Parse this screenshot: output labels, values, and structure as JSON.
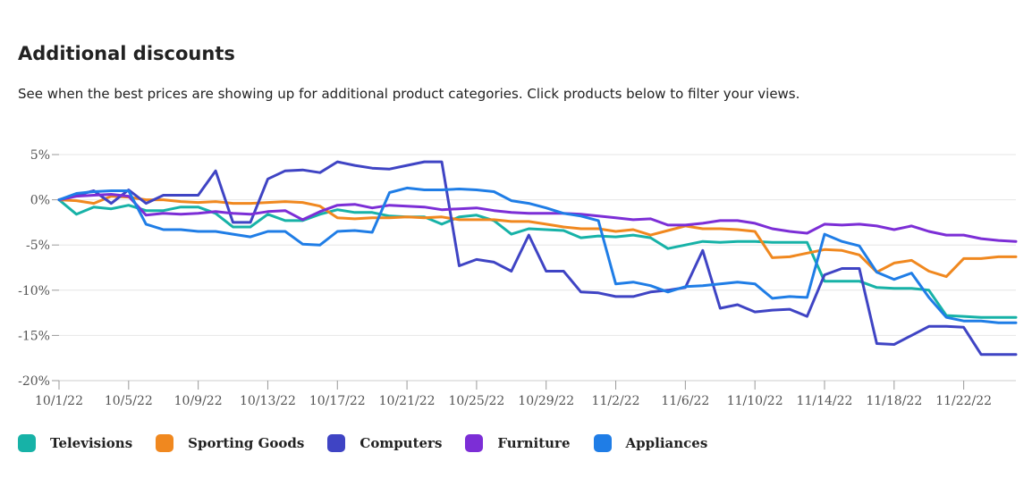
{
  "header": {
    "title": "Additional discounts",
    "subtitle": "See when the best prices are showing up for additional product categories. Click products below to filter your views."
  },
  "chart_data": {
    "type": "line",
    "title": "Additional discounts",
    "xlabel": "",
    "ylabel": "",
    "ylim": [
      -20,
      5
    ],
    "yticks": [
      5,
      0,
      -5,
      -10,
      -15,
      -20
    ],
    "ytick_labels": [
      "5%",
      "0%",
      "-5%",
      "-10%",
      "-15%",
      "-20%"
    ],
    "xtick_labels": [
      "10/1/22",
      "10/5/22",
      "10/9/22",
      "10/13/22",
      "10/17/22",
      "10/21/22",
      "10/25/22",
      "10/29/22",
      "11/2/22",
      "11/6/22",
      "11/10/22",
      "11/14/22",
      "11/18/22",
      "11/22/22"
    ],
    "xtick_every": 4,
    "grid": true,
    "legend_position": "bottom-left",
    "categories": [
      "10/1/22",
      "10/2/22",
      "10/3/22",
      "10/4/22",
      "10/5/22",
      "10/6/22",
      "10/7/22",
      "10/8/22",
      "10/9/22",
      "10/10/22",
      "10/11/22",
      "10/12/22",
      "10/13/22",
      "10/14/22",
      "10/15/22",
      "10/16/22",
      "10/17/22",
      "10/18/22",
      "10/19/22",
      "10/20/22",
      "10/21/22",
      "10/22/22",
      "10/23/22",
      "10/24/22",
      "10/25/22",
      "10/26/22",
      "10/27/22",
      "10/28/22",
      "10/29/22",
      "10/30/22",
      "10/31/22",
      "11/1/22",
      "11/2/22",
      "11/3/22",
      "11/4/22",
      "11/5/22",
      "11/6/22",
      "11/7/22",
      "11/8/22",
      "11/9/22",
      "11/10/22",
      "11/11/22",
      "11/12/22",
      "11/13/22",
      "11/14/22",
      "11/15/22",
      "11/16/22",
      "11/17/22",
      "11/18/22",
      "11/19/22",
      "11/20/22",
      "11/21/22",
      "11/22/22",
      "11/23/22",
      "11/24/22",
      "11/25/22"
    ],
    "series": [
      {
        "name": "Televisions",
        "color": "#17b2a7",
        "values": [
          0.0,
          -1.6,
          -0.8,
          -1.0,
          -0.6,
          -1.2,
          -1.2,
          -0.8,
          -0.8,
          -1.5,
          -3.0,
          -3.0,
          -1.6,
          -2.3,
          -2.3,
          -1.6,
          -1.1,
          -1.4,
          -1.4,
          -1.8,
          -1.9,
          -1.9,
          -2.7,
          -1.9,
          -1.7,
          -2.3,
          -3.8,
          -3.2,
          -3.3,
          -3.4,
          -4.2,
          -4.0,
          -4.1,
          -3.9,
          -4.2,
          -5.4,
          -5.0,
          -4.6,
          -4.7,
          -4.6,
          -4.6,
          -4.7,
          -4.7,
          -4.7,
          -9.0,
          -9.0,
          -9.0,
          -9.7,
          -9.8,
          -9.8,
          -10.0,
          -12.8,
          -12.9,
          -13.0,
          -13.0,
          -13.0
        ]
      },
      {
        "name": "Sporting Goods",
        "color": "#f0881f",
        "values": [
          0.0,
          -0.1,
          -0.4,
          0.4,
          0.3,
          0.0,
          0.0,
          -0.2,
          -0.3,
          -0.2,
          -0.4,
          -0.4,
          -0.3,
          -0.2,
          -0.3,
          -0.7,
          -2.0,
          -2.1,
          -2.0,
          -2.0,
          -1.9,
          -2.0,
          -1.9,
          -2.2,
          -2.2,
          -2.2,
          -2.4,
          -2.4,
          -2.7,
          -3.0,
          -3.2,
          -3.2,
          -3.5,
          -3.3,
          -3.9,
          -3.4,
          -2.9,
          -3.2,
          -3.2,
          -3.3,
          -3.5,
          -6.4,
          -6.3,
          -5.9,
          -5.5,
          -5.6,
          -6.1,
          -8.0,
          -7.0,
          -6.7,
          -7.9,
          -8.5,
          -6.5,
          -6.5,
          -6.3,
          -6.3
        ]
      },
      {
        "name": "Computers",
        "color": "#3f44c4",
        "values": [
          0.0,
          0.5,
          1.0,
          -0.4,
          1.1,
          -0.4,
          0.5,
          0.5,
          0.5,
          3.2,
          -2.5,
          -2.5,
          2.3,
          3.2,
          3.3,
          3.0,
          4.2,
          3.8,
          3.5,
          3.4,
          3.8,
          4.2,
          4.2,
          -7.3,
          -6.6,
          -6.9,
          -7.9,
          -3.9,
          -7.9,
          -7.9,
          -10.2,
          -10.3,
          -10.7,
          -10.7,
          -10.2,
          -10.0,
          -9.7,
          -5.6,
          -12.0,
          -11.6,
          -12.4,
          -12.2,
          -12.1,
          -12.9,
          -8.3,
          -7.6,
          -7.6,
          -15.9,
          -16.0,
          -15.0,
          -14.0,
          -14.0,
          -14.1,
          -17.1,
          -17.1,
          -17.1
        ]
      },
      {
        "name": "Furniture",
        "color": "#7c2ed6",
        "values": [
          0.0,
          0.4,
          0.5,
          0.6,
          0.4,
          -1.7,
          -1.5,
          -1.6,
          -1.5,
          -1.3,
          -1.5,
          -1.6,
          -1.3,
          -1.2,
          -2.2,
          -1.3,
          -0.6,
          -0.5,
          -0.9,
          -0.6,
          -0.7,
          -0.8,
          -1.1,
          -1.0,
          -0.9,
          -1.2,
          -1.4,
          -1.5,
          -1.5,
          -1.5,
          -1.6,
          -1.8,
          -2.0,
          -2.2,
          -2.1,
          -2.8,
          -2.8,
          -2.6,
          -2.3,
          -2.3,
          -2.6,
          -3.2,
          -3.5,
          -3.7,
          -2.7,
          -2.8,
          -2.7,
          -2.9,
          -3.3,
          -2.9,
          -3.5,
          -3.9,
          -3.9,
          -4.3,
          -4.5,
          -4.6
        ]
      },
      {
        "name": "Appliances",
        "color": "#1f7de6",
        "values": [
          0.0,
          0.7,
          0.9,
          1.0,
          1.0,
          -2.7,
          -3.3,
          -3.3,
          -3.5,
          -3.5,
          -3.8,
          -4.1,
          -3.5,
          -3.5,
          -4.9,
          -5.0,
          -3.5,
          -3.4,
          -3.6,
          0.8,
          1.3,
          1.1,
          1.1,
          1.2,
          1.1,
          0.9,
          -0.1,
          -0.4,
          -0.9,
          -1.5,
          -1.8,
          -2.3,
          -9.3,
          -9.1,
          -9.5,
          -10.2,
          -9.6,
          -9.5,
          -9.3,
          -9.1,
          -9.3,
          -10.9,
          -10.7,
          -10.8,
          -3.8,
          -4.6,
          -5.1,
          -8.0,
          -8.8,
          -8.1,
          -10.8,
          -13.0,
          -13.4,
          -13.4,
          -13.6,
          -13.6
        ]
      }
    ]
  }
}
